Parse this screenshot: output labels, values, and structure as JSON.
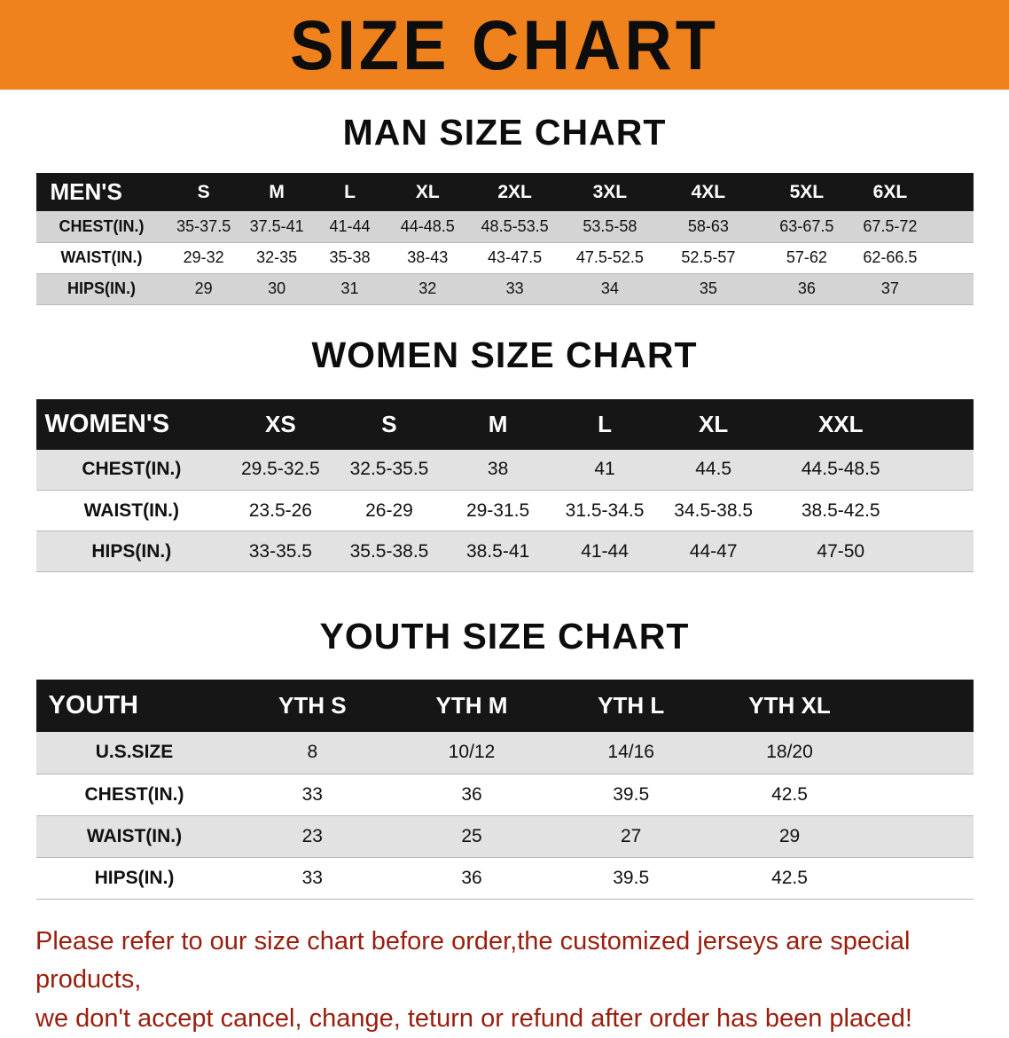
{
  "banner": {
    "title": "SIZE CHART"
  },
  "colors": {
    "banner_bg": "#F0821D",
    "header_band": "#161616",
    "stripe_men": "#D4D4D4",
    "stripe_light": "#E2E2E2",
    "footer_text": "#9A1E0E"
  },
  "sections": [
    {
      "id": "men",
      "heading": "MAN SIZE CHART",
      "table": {
        "header": [
          "MEN'S",
          "S",
          "M",
          "L",
          "XL",
          "2XL",
          "3XL",
          "4XL",
          "5XL",
          "6XL"
        ],
        "rows": [
          [
            "CHEST(IN.)",
            "35-37.5",
            "37.5-41",
            "41-44",
            "44-48.5",
            "48.5-53.5",
            "53.5-58",
            "58-63",
            "63-67.5",
            "67.5-72"
          ],
          [
            "WAIST(IN.)",
            "29-32",
            "32-35",
            "35-38",
            "38-43",
            "43-47.5",
            "47.5-52.5",
            "52.5-57",
            "57-62",
            "62-66.5"
          ],
          [
            "HIPS(IN.)",
            "29",
            "30",
            "31",
            "32",
            "33",
            "34",
            "35",
            "36",
            "37"
          ]
        ]
      }
    },
    {
      "id": "women",
      "heading": "WOMEN SIZE CHART",
      "table": {
        "header": [
          "WOMEN'S",
          "XS",
          "S",
          "M",
          "L",
          "XL",
          "XXL"
        ],
        "rows": [
          [
            "CHEST(IN.)",
            "29.5-32.5",
            "32.5-35.5",
            "38",
            "41",
            "44.5",
            "44.5-48.5"
          ],
          [
            "WAIST(IN.)",
            "23.5-26",
            "26-29",
            "29-31.5",
            "31.5-34.5",
            "34.5-38.5",
            "38.5-42.5"
          ],
          [
            "HIPS(IN.)",
            "33-35.5",
            "35.5-38.5",
            "38.5-41",
            "41-44",
            "44-47",
            "47-50"
          ]
        ]
      }
    },
    {
      "id": "youth",
      "heading": "YOUTH SIZE CHART",
      "table": {
        "header": [
          "YOUTH",
          "YTH S",
          "YTH M",
          "YTH L",
          "YTH XL"
        ],
        "rows": [
          [
            "U.S.SIZE",
            "8",
            "10/12",
            "14/16",
            "18/20"
          ],
          [
            "CHEST(IN.)",
            "33",
            "36",
            "39.5",
            "42.5"
          ],
          [
            "WAIST(IN.)",
            "23",
            "25",
            "27",
            "29"
          ],
          [
            "HIPS(IN.)",
            "33",
            "36",
            "39.5",
            "42.5"
          ]
        ]
      }
    }
  ],
  "footer": {
    "lines": [
      "Please refer to our size chart before order,the customized jerseys are special products,",
      "we don't accept cancel, change, teturn or refund after order has been placed!"
    ]
  }
}
